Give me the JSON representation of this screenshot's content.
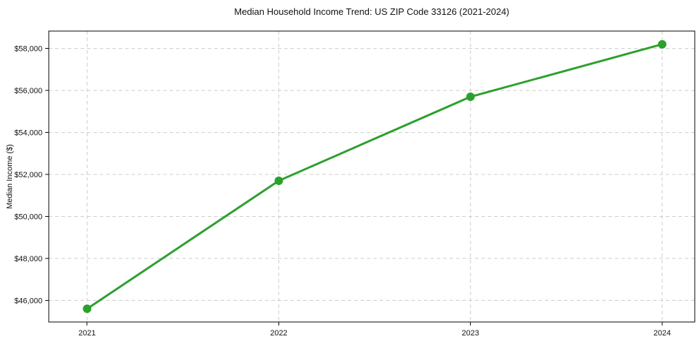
{
  "figure": {
    "background": "#ffffff",
    "title": "Median Household Income Trend: US ZIP Code 33126 (2021-2024)"
  },
  "chart_data": {
    "type": "line",
    "title": "Median Household Income Trend: US ZIP Code 33126 (2021-2024)",
    "xlabel": "",
    "ylabel": "Median Income ($)",
    "x": [
      2021,
      2022,
      2023,
      2024
    ],
    "x_tick_labels": [
      "2021",
      "2022",
      "2023",
      "2024"
    ],
    "series": [
      {
        "name": "Median Income",
        "values": [
          45600,
          51700,
          55700,
          58200
        ],
        "color": "#2ca02c",
        "marker": "circle",
        "line_style": "solid"
      }
    ],
    "y_ticks": [
      46000,
      48000,
      50000,
      52000,
      54000,
      56000,
      58000
    ],
    "y_tick_labels": [
      "$46,000",
      "$48,000",
      "$50,000",
      "$52,000",
      "$54,000",
      "$56,000",
      "$58,000"
    ],
    "xlim": [
      2020.8,
      2024.17
    ],
    "ylim": [
      44970,
      58830
    ],
    "grid": true,
    "grid_color": "#cccccc",
    "grid_style": "dashed",
    "spine_color": "#000000",
    "legend_position": "none"
  }
}
